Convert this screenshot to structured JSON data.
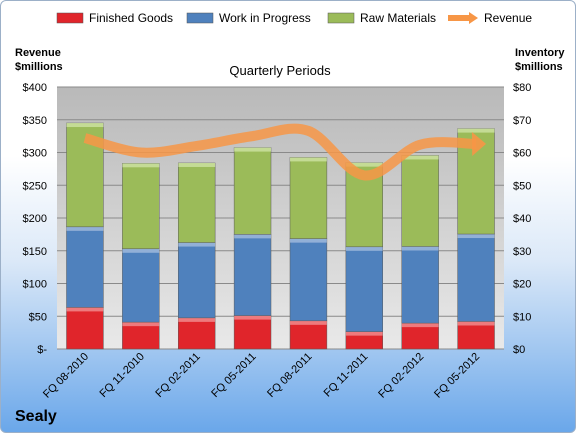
{
  "chart_data": {
    "type": "bar",
    "title": "Quarterly Periods",
    "company": "Sealy",
    "left_axis": {
      "title_lines": [
        "Revenue",
        "$millions"
      ],
      "ylim": [
        0,
        400
      ],
      "ticks": [
        0,
        50,
        100,
        150,
        200,
        250,
        300,
        350,
        400
      ],
      "tick_labels": [
        "$-",
        "$50",
        "$100",
        "$150",
        "$200",
        "$250",
        "$300",
        "$350",
        "$400"
      ]
    },
    "right_axis": {
      "title_lines": [
        "Inventory",
        "$millions"
      ],
      "ylim": [
        0,
        80
      ],
      "ticks": [
        0,
        10,
        20,
        30,
        40,
        50,
        60,
        70,
        80
      ],
      "tick_labels": [
        "$0",
        "$10",
        "$20",
        "$30",
        "$40",
        "$50",
        "$60",
        "$70",
        "$80"
      ]
    },
    "categories": [
      "FQ 08-2010",
      "FQ 11-2010",
      "FQ 02-2011",
      "FQ 05-2011",
      "FQ 08-2011",
      "FQ 11-2011",
      "FQ 02-2012",
      "FQ 05-2012"
    ],
    "series": [
      {
        "name": "Finished Goods",
        "axis": "right",
        "color": "#e0252b",
        "values": [
          12.7,
          8.2,
          9.5,
          10.2,
          8.6,
          5.3,
          7.9,
          8.4
        ]
      },
      {
        "name": "Work in Progress",
        "axis": "right",
        "color": "#4f81bd",
        "values": [
          24.6,
          22.4,
          23.0,
          24.8,
          25.1,
          25.9,
          23.4,
          26.7
        ]
      },
      {
        "name": "Raw Materials",
        "axis": "right",
        "color": "#9bbb59",
        "values": [
          31.7,
          26.1,
          24.3,
          26.5,
          24.8,
          25.7,
          27.8,
          32.2
        ]
      },
      {
        "name": "Revenue",
        "axis": "left",
        "type": "line",
        "color": "#f79646",
        "values": [
          322,
          300,
          310,
          325,
          333,
          265,
          312,
          313
        ]
      }
    ],
    "legend": "top",
    "grid": true
  }
}
